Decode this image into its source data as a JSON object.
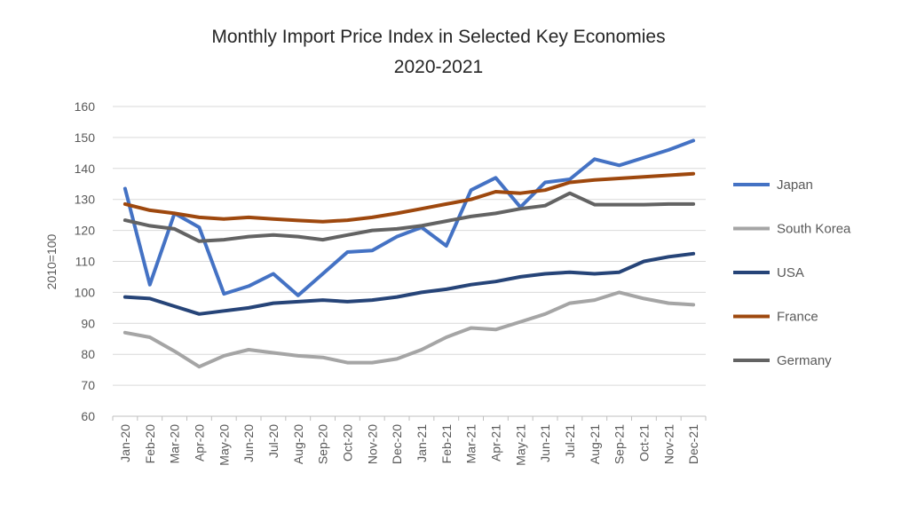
{
  "chart_data": {
    "type": "line",
    "title": "Monthly Import Price Index in Selected  Key Economies",
    "subtitle": "2020-2021",
    "xlabel": "",
    "ylabel": "2010=100",
    "ylim": [
      60,
      160
    ],
    "yticks": [
      60,
      70,
      80,
      90,
      100,
      110,
      120,
      130,
      140,
      150,
      160
    ],
    "grid": true,
    "legend_position": "right",
    "categories": [
      "Jan-20",
      "Feb-20",
      "Mar-20",
      "Apr-20",
      "May-20",
      "Jun-20",
      "Jul-20",
      "Aug-20",
      "Sep-20",
      "Oct-20",
      "Nov-20",
      "Dec-20",
      "Jan-21",
      "Feb-21",
      "Mar-21",
      "Apr-21",
      "May-21",
      "Jun-21",
      "Jul-21",
      "Aug-21",
      "Sep-21",
      "Oct-21",
      "Nov-21",
      "Dec-21"
    ],
    "series": [
      {
        "name": "Japan",
        "color": "#4472c4",
        "values": [
          133.5,
          102.5,
          125.5,
          121,
          99.5,
          102,
          106,
          99,
          106,
          113,
          113.5,
          118,
          121,
          115,
          133,
          137,
          127.5,
          135.5,
          136.5,
          143,
          141,
          143.5,
          146,
          149
        ]
      },
      {
        "name": "South Korea",
        "color": "#a5a5a5",
        "values": [
          87,
          85.5,
          81,
          76,
          79.5,
          81.5,
          80.5,
          79.5,
          79,
          77.3,
          77.3,
          78.5,
          81.5,
          85.5,
          88.5,
          88,
          90.5,
          93,
          96.5,
          97.5,
          100,
          98,
          96.5,
          96
        ]
      },
      {
        "name": "USA",
        "color": "#264478",
        "values": [
          98.5,
          98,
          95.5,
          93,
          94,
          95,
          96.5,
          97,
          97.5,
          97,
          97.5,
          98.5,
          100,
          101,
          102.5,
          103.5,
          105,
          106,
          106.5,
          106,
          106.5,
          110,
          111.5,
          112.5
        ]
      },
      {
        "name": "France",
        "color": "#9e480e",
        "values": [
          128.5,
          126.5,
          125.5,
          124.2,
          123.7,
          124.2,
          123.7,
          123.2,
          122.8,
          123.3,
          124.2,
          125.5,
          127,
          128.5,
          130,
          132.5,
          132,
          133,
          135.5,
          136.3,
          136.8,
          137.3,
          137.8,
          138.3
        ]
      },
      {
        "name": "Germany",
        "color": "#636363",
        "values": [
          123.3,
          121.5,
          120.5,
          116.5,
          117,
          118,
          118.5,
          118,
          117,
          118.5,
          120,
          120.5,
          121.5,
          123,
          124.5,
          125.5,
          127,
          128,
          132,
          128.3,
          128.3,
          128.3,
          128.5,
          128.5
        ]
      }
    ]
  }
}
